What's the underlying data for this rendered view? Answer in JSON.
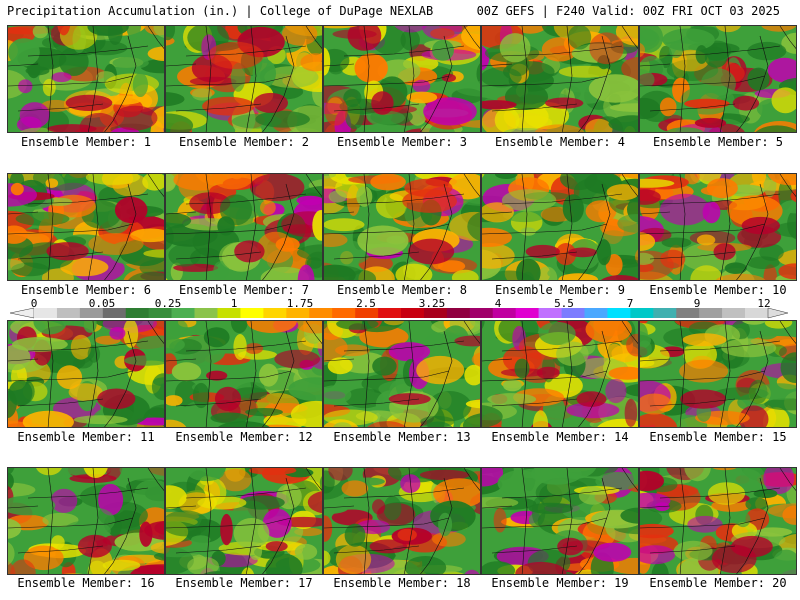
{
  "header": {
    "left": "Precipitation Accumulation (in.) | College of DuPage NEXLAB",
    "right": "00Z GEFS | F240 Valid: 00Z FRI OCT 03 2025"
  },
  "member_label_prefix": "Ensemble Member: ",
  "members": [
    "1",
    "2",
    "3",
    "4",
    "5",
    "6",
    "7",
    "8",
    "9",
    "10",
    "11",
    "12",
    "13",
    "14",
    "15",
    "16",
    "17",
    "18",
    "19",
    "20"
  ],
  "colorbar": {
    "tick_labels": [
      "0",
      "0.05",
      "0.25",
      "1",
      "1.75",
      "2.5",
      "3.25",
      "4",
      "5.5",
      "7",
      "9",
      "12"
    ],
    "colors": [
      "#e6e6e6",
      "#bfbfbf",
      "#9a9a9a",
      "#6d6d6d",
      "#2e7d32",
      "#388e3c",
      "#4caf50",
      "#8bc34a",
      "#c6e000",
      "#ffff00",
      "#ffd500",
      "#ffb300",
      "#ff8c00",
      "#ff6a00",
      "#f04000",
      "#e01010",
      "#c80010",
      "#a8001c",
      "#900040",
      "#a0006a",
      "#c000a0",
      "#e000d0",
      "#c070ff",
      "#7c7cff",
      "#4aa8ff",
      "#00e0ff",
      "#00c8c8",
      "#40b0b0",
      "#808080",
      "#a0a0a0",
      "#c0c0c0",
      "#d8d8d8"
    ]
  },
  "field_palette": [
    "#1e7a23",
    "#3ea03a",
    "#8cc43c",
    "#e8e200",
    "#ffb200",
    "#ff7a00",
    "#e23010",
    "#b5002a",
    "#c000b0",
    "#8a6aff",
    "#7fd0ff",
    "#d8d8d8"
  ]
}
